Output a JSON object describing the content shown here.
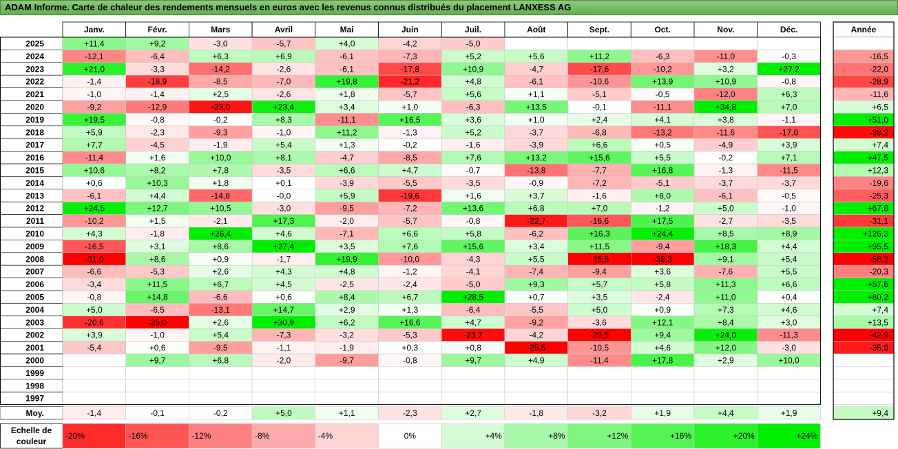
{
  "title": "ADAM Informe. Carte de chaleur des rendements mensuels en euros avec les revenus connus distribués du placement LANXESS AG",
  "chart_data": {
    "type": "heatmap",
    "columns": [
      "Janv.",
      "Févr.",
      "Mars",
      "Avril",
      "Mai",
      "Juin",
      "Juil.",
      "Août",
      "Sept.",
      "Oct.",
      "Nov.",
      "Déc."
    ],
    "year_header": "Année",
    "rows": [
      {
        "label": "2025",
        "values": [
          "+11,4",
          "+9,2",
          "-3,0",
          "-5,7",
          "+4,0",
          "-4,2",
          "-5,0",
          "",
          "",
          "",
          "",
          ""
        ],
        "year": ""
      },
      {
        "label": "2024",
        "values": [
          "-12,1",
          "-6,4",
          "+6,3",
          "+6,9",
          "-6,1",
          "-7,3",
          "+5,2",
          "+5,6",
          "+11,2",
          "-6,3",
          "-11,0",
          "-0,3"
        ],
        "year": "-16,5"
      },
      {
        "label": "2023",
        "values": [
          "+21,0",
          "-3,3",
          "-14,2",
          "-2,6",
          "-6,1",
          "-17,8",
          "+10,9",
          "-4,7",
          "-17,6",
          "-10,2",
          "+3,2",
          "+27,2"
        ],
        "year": "-22,0"
      },
      {
        "label": "2022",
        "values": [
          "-1,4",
          "-18,9",
          "-8,5",
          "-7,0",
          "+19,8",
          "-21,2",
          "+4,8",
          "-6,1",
          "-10,6",
          "+13,9",
          "+10,9",
          "-0,8"
        ],
        "year": "-28,9"
      },
      {
        "label": "2021",
        "values": [
          "-1,0",
          "-1,4",
          "+2,5",
          "-2,6",
          "+1,8",
          "-5,7",
          "+5,6",
          "+1,1",
          "-5,1",
          "-0,5",
          "-12,0",
          "+6,3"
        ],
        "year": "-11,6"
      },
      {
        "label": "2020",
        "values": [
          "-9,2",
          "-12,9",
          "-23,0",
          "+23,4",
          "+3,4",
          "+1,0",
          "-6,3",
          "+13,5",
          "-0,1",
          "-11,1",
          "+34,8",
          "+7,0"
        ],
        "year": "+6,5"
      },
      {
        "label": "2019",
        "values": [
          "+19,5",
          "-0,8",
          "-0,2",
          "+8,3",
          "-11,1",
          "+16,5",
          "+3,6",
          "+1,0",
          "+2,4",
          "+4,1",
          "+3,8",
          "-1,1"
        ],
        "year": "+51,0"
      },
      {
        "label": "2018",
        "values": [
          "+5,9",
          "-2,3",
          "-9,3",
          "-1,0",
          "+11,2",
          "-1,3",
          "+5,2",
          "-3,7",
          "-6,8",
          "-13,2",
          "-11,6",
          "-17,0"
        ],
        "year": "-38,2"
      },
      {
        "label": "2017",
        "values": [
          "+7,7",
          "-4,5",
          "-1,9",
          "+5,4",
          "+1,3",
          "-0,2",
          "-1,6",
          "-3,9",
          "+6,6",
          "+0,5",
          "-4,9",
          "+3,9"
        ],
        "year": "+7,4"
      },
      {
        "label": "2016",
        "values": [
          "-11,4",
          "+1,6",
          "+10,0",
          "+8,1",
          "-4,7",
          "-8,5",
          "+7,6",
          "+13,2",
          "+15,6",
          "+5,5",
          "-0,2",
          "+7,1"
        ],
        "year": "+47,5"
      },
      {
        "label": "2015",
        "values": [
          "+10,6",
          "+8,2",
          "+7,8",
          "-3,5",
          "+6,6",
          "+4,7",
          "-0,7",
          "-13,8",
          "-7,7",
          "+16,8",
          "-1,3",
          "-11,5"
        ],
        "year": "+12,3"
      },
      {
        "label": "2014",
        "values": [
          "+0,6",
          "+10,3",
          "+1,8",
          "+0,1",
          "-3,9",
          "-5,5",
          "-3,5",
          "-0,9",
          "-7,2",
          "-5,1",
          "-3,7",
          "-3,7"
        ],
        "year": "-19,6"
      },
      {
        "label": "2013",
        "values": [
          "-6,1",
          "+4,4",
          "-14,8",
          "-0,0",
          "+5,9",
          "-19,6",
          "+1,6",
          "+3,7",
          "-1,6",
          "+8,0",
          "-6,1",
          "-0,5"
        ],
        "year": "-25,3"
      },
      {
        "label": "2012",
        "values": [
          "+24,5",
          "+12,7",
          "+10,5",
          "-3,0",
          "-9,5",
          "-7,2",
          "+13,6",
          "+6,8",
          "+7,0",
          "-1,2",
          "+5,0",
          "-1,0"
        ],
        "year": "+67,8"
      },
      {
        "label": "2011",
        "values": [
          "-10,2",
          "+1,5",
          "-2,1",
          "+17,3",
          "-2,0",
          "-5,7",
          "-0,8",
          "-22,7",
          "-16,6",
          "+17,5",
          "-2,7",
          "-3,5"
        ],
        "year": "-31,1"
      },
      {
        "label": "2010",
        "values": [
          "+4,3",
          "-1,8",
          "+26,4",
          "+4,6",
          "-7,1",
          "+6,6",
          "+5,8",
          "-6,2",
          "+16,3",
          "+24,4",
          "+8,5",
          "+8,9"
        ],
        "year": "+126,3"
      },
      {
        "label": "2009",
        "values": [
          "-16,5",
          "+3,1",
          "+8,6",
          "+27,4",
          "+3,5",
          "+7,6",
          "+15,6",
          "+3,4",
          "+11,5",
          "-9,4",
          "+18,3",
          "+4,4"
        ],
        "year": "+95,5"
      },
      {
        "label": "2008",
        "values": [
          "-31,0",
          "+8,6",
          "+0,9",
          "-1,7",
          "+19,9",
          "-10,0",
          "-4,3",
          "+5,5",
          "-26,5",
          "-38,3",
          "+9,1",
          "+5,4"
        ],
        "year": "-56,2"
      },
      {
        "label": "2007",
        "values": [
          "-6,6",
          "-5,3",
          "+2,6",
          "+4,3",
          "+4,8",
          "-1,2",
          "-4,1",
          "-7,4",
          "-9,4",
          "+3,6",
          "-7,6",
          "+5,5"
        ],
        "year": "-20,3"
      },
      {
        "label": "2006",
        "values": [
          "-3,4",
          "+11,5",
          "+6,7",
          "+4,5",
          "-2,5",
          "-2,4",
          "-5,0",
          "+9,3",
          "+5,7",
          "+5,8",
          "+11,3",
          "+6,6"
        ],
        "year": "+57,6"
      },
      {
        "label": "2005",
        "values": [
          "-0,8",
          "+14,8",
          "-6,6",
          "+0,6",
          "+8,4",
          "+6,7",
          "+28,5",
          "+0,7",
          "+3,5",
          "-2,4",
          "+11,0",
          "+0,4"
        ],
        "year": "+80,2"
      },
      {
        "label": "2004",
        "values": [
          "+5,0",
          "-6,5",
          "-13,1",
          "+14,7",
          "+2,9",
          "+1,3",
          "-6,4",
          "-5,5",
          "+5,0",
          "+0,9",
          "+7,3",
          "+4,6"
        ],
        "year": "+7,4"
      },
      {
        "label": "2003",
        "values": [
          "-20,6",
          "-25,0",
          "+2,6",
          "+30,9",
          "+6,2",
          "+16,6",
          "+4,7",
          "-9,2",
          "-3,6",
          "+12,1",
          "+8,4",
          "+3,0"
        ],
        "year": "+13,5"
      },
      {
        "label": "2002",
        "values": [
          "+3,9",
          "-1,0",
          "+5,4",
          "-7,3",
          "-3,2",
          "-5,3",
          "-23,7",
          "-4,2",
          "-29,5",
          "+9,4",
          "+24,0",
          "-11,3"
        ],
        "year": "-42,9"
      },
      {
        "label": "2001",
        "values": [
          "-5,4",
          "+0,6",
          "-9,5",
          "-1,1",
          "-1,9",
          "+0,3",
          "+0,8",
          "-25,5",
          "-10,5",
          "+4,6",
          "+12,0",
          "-3,0"
        ],
        "year": "-35,9"
      },
      {
        "label": "2000",
        "values": [
          "",
          "+9,7",
          "+6,8",
          "-2,0",
          "-9,7",
          "-0,8",
          "+9,7",
          "+4,9",
          "-11,4",
          "+17,8",
          "+2,9",
          "+10,0"
        ],
        "year": ""
      },
      {
        "label": "1999",
        "values": [
          "",
          "",
          "",
          "",
          "",
          "",
          "",
          "",
          "",
          "",
          "",
          ""
        ],
        "year": ""
      },
      {
        "label": "1998",
        "values": [
          "",
          "",
          "",
          "",
          "",
          "",
          "",
          "",
          "",
          "",
          "",
          ""
        ],
        "year": ""
      },
      {
        "label": "1997",
        "values": [
          "",
          "",
          "",
          "",
          "",
          "",
          "",
          "",
          "",
          "",
          "",
          ""
        ],
        "year": ""
      }
    ],
    "average": {
      "label": "Moy.",
      "values": [
        "-1,4",
        "-0,1",
        "-0,2",
        "+5,0",
        "+1,1",
        "-2,3",
        "+2,7",
        "-1,8",
        "-3,2",
        "+1,9",
        "+4,4",
        "+1,9"
      ],
      "year": "+9,4"
    },
    "color_scale": {
      "label_line1": "Echelle de",
      "label_line2": "couleur",
      "steps": [
        "-20%",
        "-16%",
        "-12%",
        "-8%",
        "-4%",
        "0%",
        "+4%",
        "+8%",
        "+12%",
        "+16%",
        "+20%",
        "+24%"
      ]
    },
    "colors": {
      "negative": "#ff0000",
      "neutral": "#ffffff",
      "positive": "#00ee00",
      "title_bar": "#6fba5a"
    }
  }
}
